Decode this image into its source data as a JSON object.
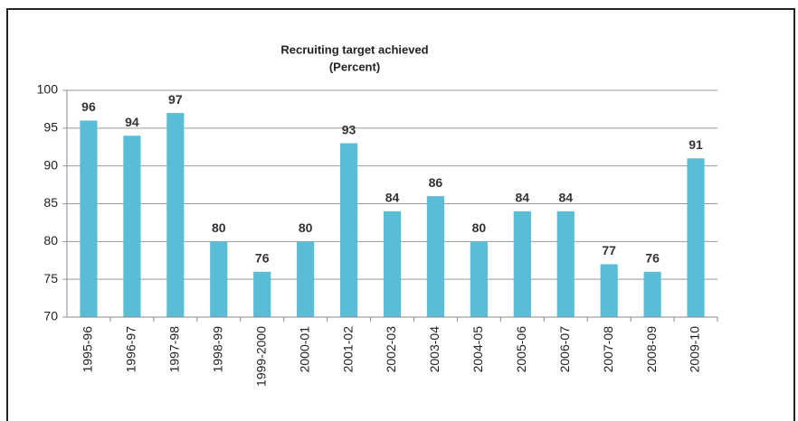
{
  "chart_data": {
    "type": "bar",
    "title": "Recruiting target achieved",
    "subtitle": "(Percent)",
    "categories": [
      "1995-96",
      "1996-97",
      "1997-98",
      "1998-99",
      "1999-2000",
      "2000-01",
      "2001-02",
      "2002-03",
      "2003-04",
      "2004-05",
      "2005-06",
      "2006-07",
      "2007-08",
      "2008-09",
      "2009-10"
    ],
    "values": [
      96,
      94,
      97,
      80,
      76,
      80,
      93,
      84,
      86,
      80,
      84,
      84,
      77,
      76,
      91
    ],
    "color": "#5bbcd6",
    "ylim": [
      70,
      100
    ],
    "yticks": [
      70,
      75,
      80,
      85,
      90,
      95,
      100
    ],
    "grid": true
  }
}
